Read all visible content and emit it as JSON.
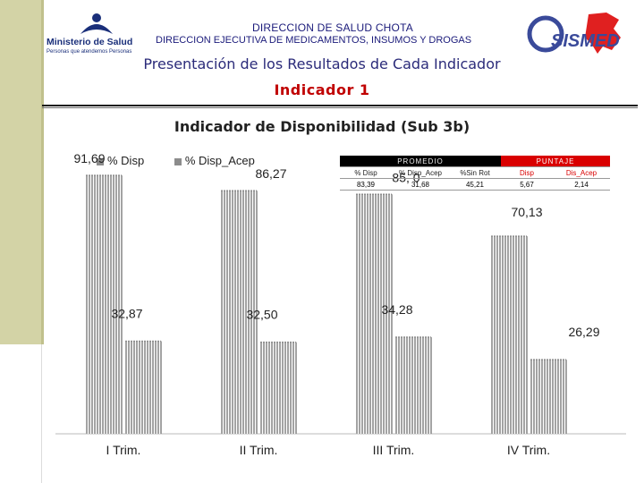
{
  "header": {
    "line1": "DIRECCION DE SALUD CHOTA",
    "line2": "DIRECCION EJECUTIVA DE MEDICAMENTOS, INSUMOS Y DROGAS",
    "logo_left_text": "Ministerio de Salud",
    "logo_left_tagline": "Personas que atendemos Personas",
    "logo_right_text": "SISMED"
  },
  "subtitle": "Presentación de los Resultados de Cada Indicador",
  "indicator_label": "Indicador 1",
  "summary_table": {
    "group_promedio": "PROMEDIO",
    "group_puntaje": "PUNTAJE",
    "columns": [
      "% Disp",
      "% Disp_Acep",
      "%Sin Rot",
      "Disp",
      "Dis_Acep"
    ],
    "values": [
      "83,39",
      "31,68",
      "45,21",
      "5,67",
      "2,14"
    ]
  },
  "colors": {
    "bar": "#8c8c8c",
    "title_red": "#c00000",
    "header_blue": "#1a1a7a",
    "table_red": "#d90000"
  },
  "chart_data": {
    "type": "bar",
    "title": "Indicador de Disponibilidad (Sub 3b)",
    "categories": [
      "I Trim.",
      "II Trim.",
      "III Trim.",
      "IV Trim."
    ],
    "series": [
      {
        "name": "% Disp",
        "values": [
          91.69,
          86.27,
          85.0,
          70.13
        ],
        "labels": [
          "91,69",
          "86,27",
          "85, 0",
          "70,13"
        ]
      },
      {
        "name": "% Disp_Acep",
        "values": [
          32.87,
          32.5,
          34.28,
          26.29
        ],
        "labels": [
          "32,87",
          "32,50",
          "34,28",
          "26,29"
        ]
      }
    ],
    "ylim": [
      0,
      100
    ],
    "legend": "top-left",
    "grid": false
  }
}
